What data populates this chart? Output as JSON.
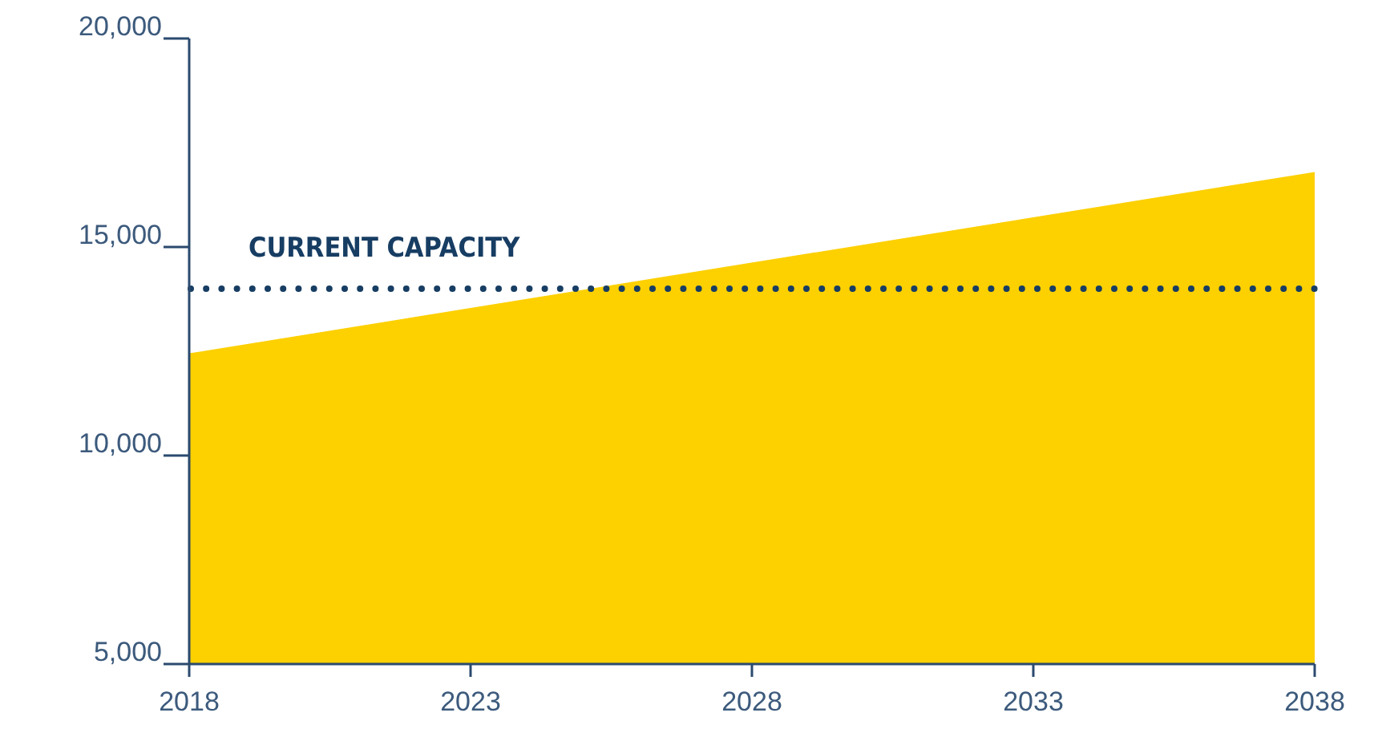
{
  "chart_data": {
    "type": "area",
    "x": [
      2018,
      2038
    ],
    "series": [
      {
        "color": "#fdd000",
        "values": [
          12450,
          16800
        ]
      }
    ],
    "xlim": [
      2018,
      2038
    ],
    "xticks": [
      2018,
      2023,
      2028,
      2033,
      2038
    ],
    "ylim": [
      5000,
      20000
    ],
    "yticks": [
      {
        "value": 5000,
        "label": "5,000"
      },
      {
        "value": 10000,
        "label": "10,000"
      },
      {
        "value": 15000,
        "label": "15,000"
      },
      {
        "value": 20000,
        "label": "20,000"
      }
    ],
    "ref_lines": [
      {
        "axis": "y",
        "value": 14000,
        "label": "CURRENT CAPACITY",
        "color": "#173d63",
        "line_style": "dotted"
      }
    ],
    "grid": false
  }
}
